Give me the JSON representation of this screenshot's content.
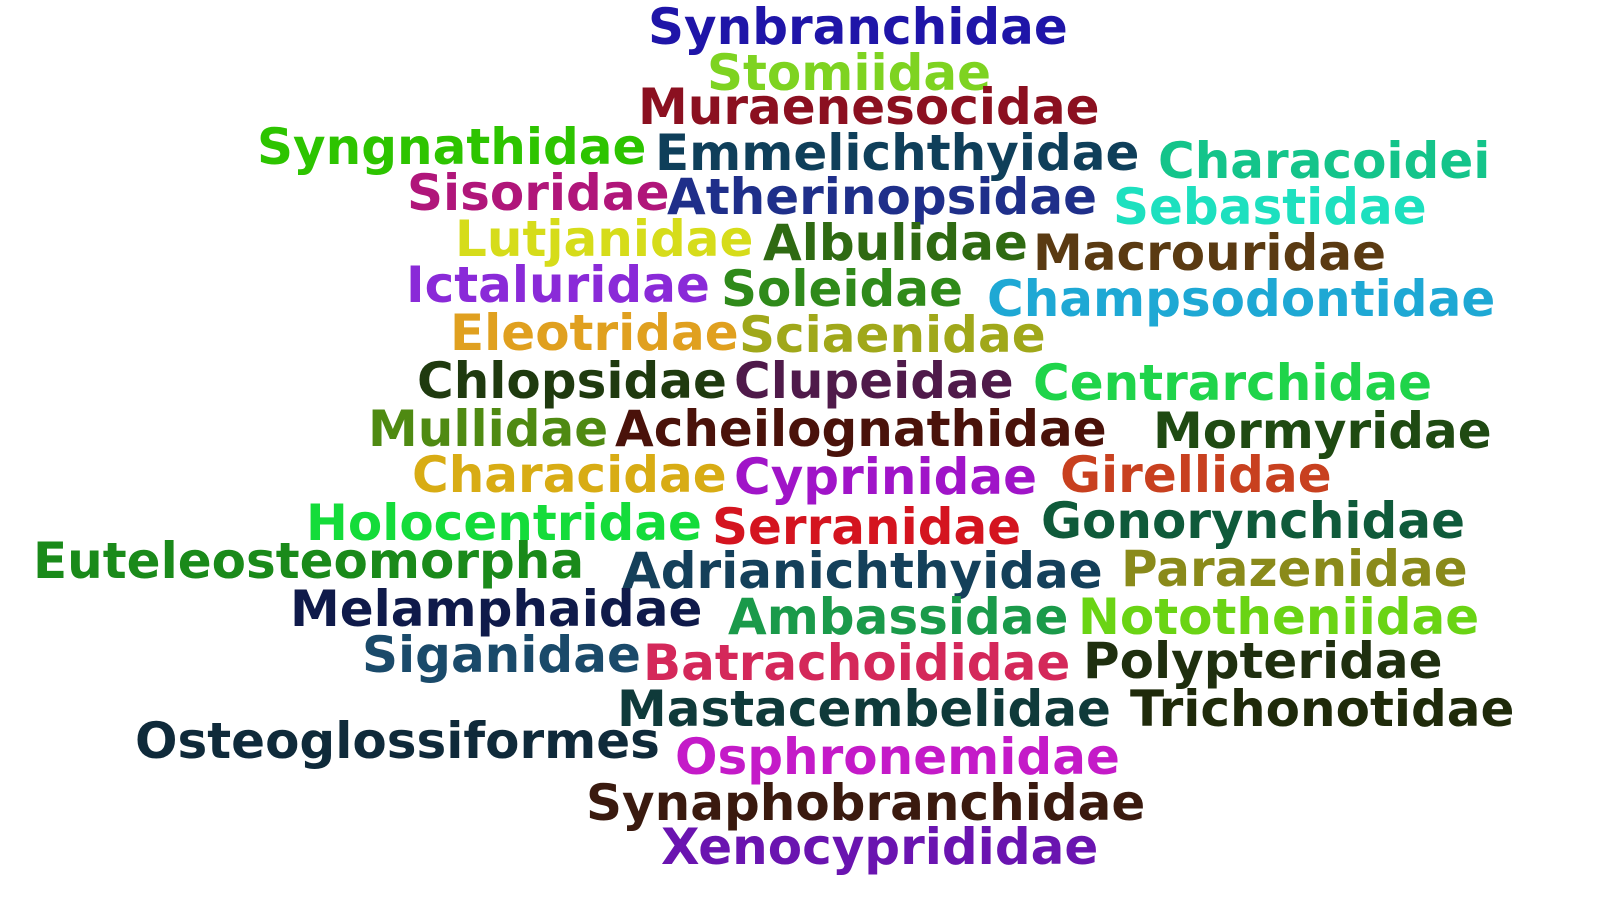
{
  "word_cloud": {
    "words": [
      {
        "text": "Synbranchidae",
        "color": "#1f15a8"
      },
      {
        "text": "Stomiidae",
        "color": "#7ed321"
      },
      {
        "text": "Muraenesocidae",
        "color": "#8b1020"
      },
      {
        "text": "Syngnathidae",
        "color": "#2dc400"
      },
      {
        "text": "Emmelichthyidae",
        "color": "#0f3f5a"
      },
      {
        "text": "Characoidei",
        "color": "#14c48a"
      },
      {
        "text": "Sisoridae",
        "color": "#b0167a"
      },
      {
        "text": "Atherinopsidae",
        "color": "#1f2f8a"
      },
      {
        "text": "Sebastidae",
        "color": "#1de0bf"
      },
      {
        "text": "Lutjanidae",
        "color": "#d6dc1a"
      },
      {
        "text": "Albulidae",
        "color": "#2f6a12"
      },
      {
        "text": "Macrouridae",
        "color": "#5a3a12"
      },
      {
        "text": "Ictaluridae",
        "color": "#8a2ad8"
      },
      {
        "text": "Soleidae",
        "color": "#2f8a1a"
      },
      {
        "text": "Champsodontidae",
        "color": "#1ea8d4"
      },
      {
        "text": "Eleotridae",
        "color": "#e0a01f"
      },
      {
        "text": "Sciaenidae",
        "color": "#a0a81a"
      },
      {
        "text": "Chlopsidae",
        "color": "#1f3a0f"
      },
      {
        "text": "Clupeidae",
        "color": "#4f1a4a"
      },
      {
        "text": "Centrarchidae",
        "color": "#1fd44a"
      },
      {
        "text": "Mullidae",
        "color": "#4f8a12"
      },
      {
        "text": "Acheilognathidae",
        "color": "#4a120a"
      },
      {
        "text": "Mormyridae",
        "color": "#1f4a12"
      },
      {
        "text": "Characidae",
        "color": "#d8ac14"
      },
      {
        "text": "Cyprinidae",
        "color": "#a014c8"
      },
      {
        "text": "Girellidae",
        "color": "#c8401f"
      },
      {
        "text": "Holocentridae",
        "color": "#14dc3a"
      },
      {
        "text": "Serranidae",
        "color": "#d4141f"
      },
      {
        "text": "Gonorynchidae",
        "color": "#0f5a3a"
      },
      {
        "text": "Euteleosteomorpha",
        "color": "#1a8a1a"
      },
      {
        "text": "Adrianichthyidae",
        "color": "#14405a"
      },
      {
        "text": "Parazenidae",
        "color": "#8a8a1a"
      },
      {
        "text": "Melamphaidae",
        "color": "#0f1a4a"
      },
      {
        "text": "Ambassidae",
        "color": "#1a9a4a"
      },
      {
        "text": "Nototheniidae",
        "color": "#6ad414"
      },
      {
        "text": "Siganidae",
        "color": "#1a4a6a"
      },
      {
        "text": "Batrachoididae",
        "color": "#d4285a"
      },
      {
        "text": "Polypteridae",
        "color": "#1f2f0f"
      },
      {
        "text": "Mastacembelidae",
        "color": "#0f3a3a"
      },
      {
        "text": "Trichonotidae",
        "color": "#1f2a0a"
      },
      {
        "text": "Osteoglossiformes",
        "color": "#0f2a3a"
      },
      {
        "text": "Osphronemidae",
        "color": "#c41ac8"
      },
      {
        "text": "Synaphobranchidae",
        "color": "#3a1a0f"
      },
      {
        "text": "Xenocyprididae",
        "color": "#6a14b0"
      }
    ]
  }
}
